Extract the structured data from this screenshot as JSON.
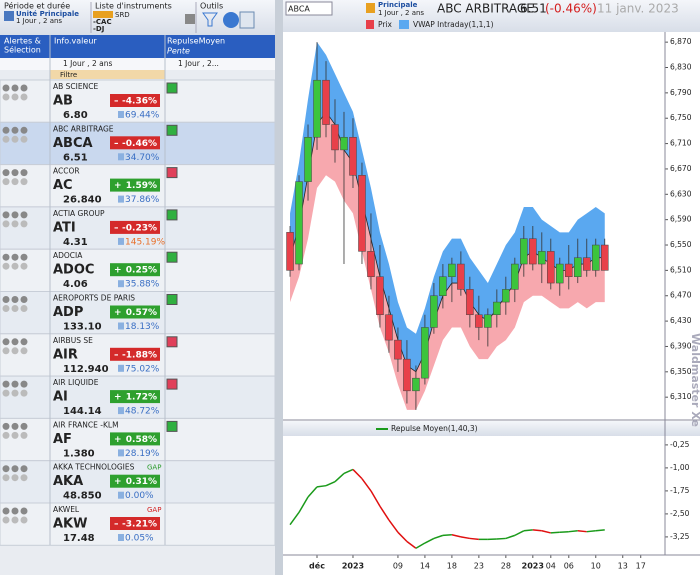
{
  "toolbar": {
    "period": "Période et durée",
    "unit": "Unité Principale",
    "unit_duration": "1 Jour , 2 ans",
    "list": "Liste d'instruments",
    "srd": "SRD",
    "cac": "-CAC",
    "dj": "-DJ",
    "tools": "Outils"
  },
  "columns": {
    "alerts_1": "Alertes &",
    "alerts_2": "Sélection",
    "info": "Info.valeur",
    "repulse": "RepulseMoyen",
    "slope": "Pente",
    "info_period": "1 Jour , 2 ans",
    "repulse_period": "1 Jour , 2...",
    "filter": "Filtre"
  },
  "pct_color": "#3a6fc4",
  "rows": [
    {
      "name": "AB SCIENCE",
      "ticker": "AB",
      "sign": "–",
      "change": "-4.36%",
      "price": "6.80",
      "pct": "69.44%",
      "slope": "up"
    },
    {
      "name": "ABC ARBITRAGE",
      "ticker": "ABCA",
      "sign": "–",
      "change": "-0.46%",
      "price": "6.51",
      "pct": "34.70%",
      "slope": "up",
      "selected": true
    },
    {
      "name": "ACCOR",
      "ticker": "AC",
      "sign": "+",
      "change": "1.59%",
      "price": "26.840",
      "pct": "37.86%",
      "slope": "down"
    },
    {
      "name": "ACTIA GROUP",
      "ticker": "ATI",
      "sign": "–",
      "change": "-0.23%",
      "price": "4.31",
      "pct": "145.19%",
      "slope": "up",
      "pct_color": "#e8702a"
    },
    {
      "name": "ADOCIA",
      "ticker": "ADOC",
      "sign": "+",
      "change": "0.25%",
      "price": "4.06",
      "pct": "35.88%",
      "slope": "up"
    },
    {
      "name": "AEROPORTS DE PARIS",
      "ticker": "ADP",
      "sign": "+",
      "change": "0.57%",
      "price": "133.10",
      "pct": "18.13%",
      "slope": "up"
    },
    {
      "name": "AIRBUS SE",
      "ticker": "AIR",
      "sign": "–",
      "change": "-1.88%",
      "price": "112.940",
      "pct": "75.02%",
      "slope": "down"
    },
    {
      "name": "AIR LIQUIDE",
      "ticker": "AI",
      "sign": "+",
      "change": "1.72%",
      "price": "144.14",
      "pct": "48.72%",
      "slope": "down"
    },
    {
      "name": "AIR FRANCE -KLM",
      "ticker": "AF",
      "sign": "+",
      "change": "0.58%",
      "price": "1.380",
      "pct": "28.19%",
      "slope": "up"
    },
    {
      "name": "AKKA TECHNOLOGIES",
      "ticker": "AKA",
      "sign": "+",
      "change": "0.31%",
      "price": "48.850",
      "pct": "0.00%",
      "gap": "GAP",
      "gap_color": "#2a9a2a"
    },
    {
      "name": "AKWEL",
      "ticker": "AKW",
      "sign": "–",
      "change": "-3.21%",
      "price": "17.48",
      "pct": "0.05%",
      "gap": "GAP",
      "gap_color": "#d42020"
    }
  ],
  "header": {
    "symbol": "ABCA",
    "unit": "Principale",
    "unit_duration": "1 Jour , 2 ans",
    "name": "ABC ARBITRAGE",
    "price": "6.51",
    "change": "(-0.46%)",
    "date": "11 janv. 2023",
    "price_legend": "Prix",
    "vwap_legend": "VWAP Intraday(1,1,1)",
    "watermark": "Waldmaster Xe"
  },
  "chart_data": [
    {
      "type": "candlestick",
      "up_color": "#3cc43c",
      "down_color": "#e8404a",
      "upper_color": "#5aa8f0",
      "lower_color": "#f7a8ae",
      "xlim": [
        -0.56,
        41.7
      ],
      "ylim": [
        6.274,
        6.886
      ],
      "yticks": [
        {
          "value": 6.87,
          "label": "6,870"
        },
        {
          "value": 6.83,
          "label": "6,830"
        },
        {
          "value": 6.79,
          "label": "6,790"
        },
        {
          "value": 6.75,
          "label": "6,750"
        },
        {
          "value": 6.71,
          "label": "6,710"
        },
        {
          "value": 6.67,
          "label": "6,670"
        },
        {
          "value": 6.63,
          "label": "6,630"
        },
        {
          "value": 6.59,
          "label": "6,590"
        },
        {
          "value": 6.55,
          "label": "6,550"
        },
        {
          "value": 6.51,
          "label": "6,510"
        },
        {
          "value": 6.47,
          "label": "6,470"
        },
        {
          "value": 6.43,
          "label": "6,430"
        },
        {
          "value": 6.39,
          "label": "6,390"
        },
        {
          "value": 6.35,
          "label": "6,350"
        },
        {
          "value": 6.31,
          "label": "6,310"
        }
      ],
      "open": [
        6.57,
        6.52,
        6.65,
        6.72,
        6.81,
        6.74,
        6.7,
        6.72,
        6.66,
        6.54,
        6.5,
        6.44,
        6.4,
        6.37,
        6.32,
        6.34,
        6.42,
        6.47,
        6.5,
        6.52,
        6.48,
        6.44,
        6.42,
        6.44,
        6.46,
        6.48,
        6.52,
        6.56,
        6.52,
        6.54,
        6.49,
        6.52,
        6.5,
        6.53,
        6.51,
        6.55
      ],
      "high": [
        6.58,
        6.66,
        6.74,
        6.87,
        6.84,
        6.78,
        6.76,
        6.75,
        6.68,
        6.6,
        6.55,
        6.47,
        6.42,
        6.4,
        6.36,
        6.44,
        6.49,
        6.52,
        6.53,
        6.54,
        6.5,
        6.47,
        6.45,
        6.48,
        6.5,
        6.53,
        6.58,
        6.58,
        6.57,
        6.56,
        6.53,
        6.55,
        6.56,
        6.56,
        6.56,
        6.56
      ],
      "low": [
        6.5,
        6.51,
        6.62,
        6.7,
        6.72,
        6.68,
        6.52,
        6.64,
        6.52,
        6.48,
        6.42,
        6.38,
        6.35,
        6.3,
        6.29,
        6.33,
        6.41,
        6.45,
        6.46,
        6.47,
        6.42,
        6.4,
        6.39,
        6.42,
        6.44,
        6.46,
        6.5,
        6.51,
        6.49,
        6.48,
        6.47,
        6.48,
        6.49,
        6.5,
        6.5,
        6.51
      ],
      "close": [
        6.51,
        6.65,
        6.72,
        6.81,
        6.74,
        6.7,
        6.72,
        6.66,
        6.54,
        6.5,
        6.44,
        6.4,
        6.37,
        6.32,
        6.34,
        6.42,
        6.47,
        6.5,
        6.52,
        6.48,
        6.44,
        6.42,
        6.44,
        6.46,
        6.48,
        6.52,
        6.56,
        6.52,
        6.54,
        6.49,
        6.52,
        6.5,
        6.53,
        6.51,
        6.55,
        6.51
      ],
      "upper": [
        6.6,
        6.68,
        6.78,
        6.87,
        6.85,
        6.82,
        6.79,
        6.76,
        6.7,
        6.64,
        6.57,
        6.52,
        6.46,
        6.42,
        6.41,
        6.45,
        6.5,
        6.54,
        6.56,
        6.56,
        6.53,
        6.51,
        6.49,
        6.52,
        6.55,
        6.57,
        6.61,
        6.61,
        6.59,
        6.58,
        6.57,
        6.57,
        6.59,
        6.6,
        6.61,
        6.6
      ],
      "middle": [
        6.53,
        6.58,
        6.66,
        6.74,
        6.76,
        6.74,
        6.7,
        6.68,
        6.62,
        6.56,
        6.5,
        6.45,
        6.4,
        6.36,
        6.35,
        6.38,
        6.43,
        6.47,
        6.49,
        6.49,
        6.46,
        6.44,
        6.43,
        6.45,
        6.47,
        6.49,
        6.53,
        6.54,
        6.53,
        6.52,
        6.51,
        6.51,
        6.52,
        6.52,
        6.53,
        6.53
      ],
      "lower": [
        6.46,
        6.5,
        6.56,
        6.64,
        6.66,
        6.65,
        6.62,
        6.6,
        6.54,
        6.48,
        6.42,
        6.38,
        6.33,
        6.29,
        6.29,
        6.32,
        6.36,
        6.4,
        6.42,
        6.42,
        6.39,
        6.37,
        6.37,
        6.39,
        6.4,
        6.42,
        6.46,
        6.47,
        6.47,
        6.46,
        6.45,
        6.45,
        6.46,
        6.45,
        6.46,
        6.46
      ]
    },
    {
      "type": "line",
      "legend": "Repulse Moyen(1,40,3)",
      "up_color": "#1a9a1a",
      "down_color": "#e01010",
      "xlim": [
        -0.56,
        41.7
      ],
      "ylim": [
        -3.84,
        0.04
      ],
      "yticks": [
        {
          "value": -0.25,
          "label": "-0,25"
        },
        {
          "value": -1,
          "label": "-1,00"
        },
        {
          "value": -1.75,
          "label": "-1,75"
        },
        {
          "value": -2.5,
          "label": "-2,50"
        },
        {
          "value": -3.25,
          "label": "-3,25"
        }
      ],
      "xticks": [
        {
          "value": 3,
          "label": "déc"
        },
        {
          "value": 7,
          "label": "2023"
        },
        {
          "value": 12,
          "label": "09"
        },
        {
          "value": 15,
          "label": "14"
        },
        {
          "value": 18,
          "label": "18"
        },
        {
          "value": 21,
          "label": "23"
        },
        {
          "value": 24,
          "label": "28"
        },
        {
          "value": 27,
          "label": "2023"
        },
        {
          "value": 29,
          "label": "04"
        },
        {
          "value": 31,
          "label": "06"
        },
        {
          "value": 34,
          "label": "10"
        },
        {
          "value": 37,
          "label": "13"
        },
        {
          "value": 39,
          "label": "17"
        }
      ],
      "values": [
        -2.85,
        -2.45,
        -1.95,
        -1.62,
        -1.58,
        -1.45,
        -1.18,
        -1.05,
        -1.35,
        -1.75,
        -2.25,
        -2.7,
        -3.1,
        -3.4,
        -3.62,
        -3.45,
        -3.3,
        -3.2,
        -3.18,
        -3.25,
        -3.3,
        -3.33,
        -3.33,
        -3.32,
        -3.3,
        -3.2,
        -3.05,
        -3.02,
        -3.05,
        -3.12,
        -3.1,
        -3.08,
        -3.05,
        -3.08,
        -3.05,
        -3.02
      ]
    }
  ]
}
